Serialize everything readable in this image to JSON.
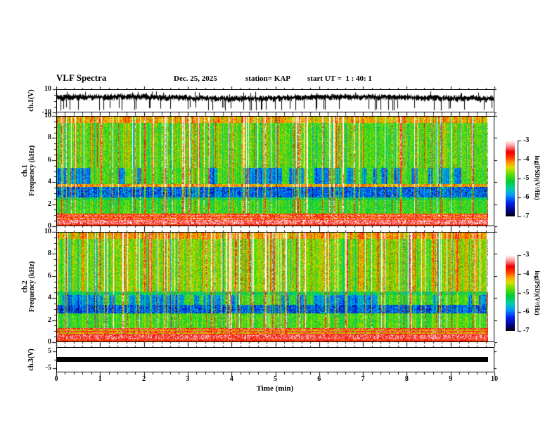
{
  "header": {
    "title": "VLF Spectra",
    "date": "Dec. 25, 2025",
    "station": "station= KAP",
    "start_ut": "start UT =  1 : 40: 1"
  },
  "xaxis": {
    "label": "Time (min)",
    "min": 0,
    "max": 10,
    "major_ticks": [
      0,
      1,
      2,
      3,
      4,
      5,
      6,
      7,
      8,
      9,
      10
    ],
    "minor_step": 0.2
  },
  "colorbar": {
    "label": "log(PSD)(V²/Hz)",
    "ticks": [
      -3,
      -4,
      -5,
      -6,
      -7
    ],
    "min": -7,
    "max": -3,
    "stops": [
      {
        "c": "#000000",
        "t": 0.0
      },
      {
        "c": "#000080",
        "t": 0.07
      },
      {
        "c": "#0022ee",
        "t": 0.18
      },
      {
        "c": "#0099ff",
        "t": 0.28
      },
      {
        "c": "#00ccaa",
        "t": 0.36
      },
      {
        "c": "#00cc33",
        "t": 0.46
      },
      {
        "c": "#66dd00",
        "t": 0.56
      },
      {
        "c": "#dddd00",
        "t": 0.64
      },
      {
        "c": "#ff9900",
        "t": 0.71
      },
      {
        "c": "#ff3300",
        "t": 0.78
      },
      {
        "c": "#ee0000",
        "t": 0.85
      },
      {
        "c": "#ff9999",
        "t": 0.93
      },
      {
        "c": "#ffffff",
        "t": 1.0
      }
    ]
  },
  "chart_data": [
    {
      "type": "line",
      "name": "ch1_waveform",
      "ylabel": "ch.1(V)",
      "ylim": [
        -10,
        10
      ],
      "yticks_major": [
        10,
        -10
      ],
      "yticks_minor": [
        5,
        0,
        -5
      ],
      "signal": {
        "mean_v": 3.0,
        "noise_band_v": 2.6,
        "neg_spike_depth_v": -9,
        "neg_spike_rate": 0.1,
        "pos_spike_rate": 0.04
      }
    },
    {
      "type": "heatmap",
      "name": "ch1_spectrogram",
      "ylabel_l1": "ch.1",
      "ylabel_l2": "Frequency (kHz)",
      "ylim": [
        0,
        10
      ],
      "yticks_major": [
        0,
        2,
        4,
        6,
        8,
        10
      ],
      "ytick_minor_step": 0.5,
      "value_range": [
        -7,
        -3
      ],
      "streaks": {
        "density": 0.13,
        "strong_boost": 1.5
      },
      "bands": [
        {
          "f0": 9.4,
          "f1": 10.0,
          "v": -4.3,
          "style": "noisy",
          "sf": 0.9
        },
        {
          "f0": 5.3,
          "f1": 9.4,
          "v": -4.9,
          "style": "streaky",
          "sf": 1.0
        },
        {
          "f0": 3.8,
          "f1": 5.3,
          "v": -5.45,
          "v_blue": -5.95,
          "v_green": -4.95,
          "style": "checker",
          "sf": 0.55
        },
        {
          "f0": 3.55,
          "f1": 3.8,
          "v": -4.25,
          "style": "noisy",
          "sf": 0.6
        },
        {
          "f0": 2.6,
          "f1": 3.55,
          "v": -6.0,
          "style": "blue",
          "sf": 0.45
        },
        {
          "f0": 2.35,
          "f1": 2.6,
          "v": -5.25,
          "style": "noisy",
          "sf": 0.5
        },
        {
          "f0": 1.1,
          "f1": 2.35,
          "v": -5.0,
          "style": "noisy",
          "sf": 0.45
        },
        {
          "f0": 0.5,
          "f1": 1.1,
          "v": -4.0,
          "v_pale": -3.35,
          "style": "stripes",
          "sf": 0.15
        },
        {
          "f0": 0.15,
          "f1": 0.5,
          "v": -3.3,
          "style": "speckle",
          "sf": 0.1
        },
        {
          "f0": 0.0,
          "f1": 0.15,
          "v": -3.7,
          "style": "speckle",
          "sf": 0.1
        }
      ]
    },
    {
      "type": "heatmap",
      "name": "ch2_spectrogram",
      "ylabel_l1": "ch.2",
      "ylabel_l2": "Frequency (kHz)",
      "ylim": [
        0,
        10
      ],
      "yticks_major": [
        0,
        2,
        4,
        6,
        8,
        10
      ],
      "ytick_minor_step": 0.5,
      "value_range": [
        -7,
        -3
      ],
      "streaks": {
        "density": 0.17,
        "strong_boost": 1.6
      },
      "bands": [
        {
          "f0": 9.4,
          "f1": 10.0,
          "v": -4.25,
          "style": "noisy",
          "sf": 0.9
        },
        {
          "f0": 4.6,
          "f1": 9.4,
          "v": -4.75,
          "style": "streaky",
          "sf": 1.0
        },
        {
          "f0": 4.25,
          "f1": 4.6,
          "v": -5.3,
          "style": "noisy",
          "sf": 0.5
        },
        {
          "f0": 3.35,
          "f1": 4.25,
          "v": -5.45,
          "v_blue": -5.9,
          "v_green": -5.0,
          "style": "checker",
          "sf": 0.5
        },
        {
          "f0": 2.55,
          "f1": 3.35,
          "v": -6.05,
          "style": "blue",
          "sf": 0.45
        },
        {
          "f0": 1.25,
          "f1": 2.55,
          "v": -4.95,
          "style": "noisy",
          "sf": 0.45
        },
        {
          "f0": 0.55,
          "f1": 1.25,
          "v": -4.45,
          "v_pale": -3.6,
          "style": "stripes",
          "sf": 0.2
        },
        {
          "f0": 0.18,
          "f1": 0.55,
          "v": -3.4,
          "style": "speckle",
          "sf": 0.1
        },
        {
          "f0": 0.0,
          "f1": 0.18,
          "v": -3.8,
          "style": "speckle",
          "sf": 0.1
        }
      ]
    },
    {
      "type": "line",
      "name": "ch3_bar",
      "ylabel": "ch.3(V)",
      "ylim": [
        -7.5,
        7.5
      ],
      "yticks_major": [
        5,
        -5
      ],
      "yticks_minor": [
        0
      ],
      "bar": {
        "top_v": 1.6,
        "bottom_v": -1.3
      }
    }
  ]
}
